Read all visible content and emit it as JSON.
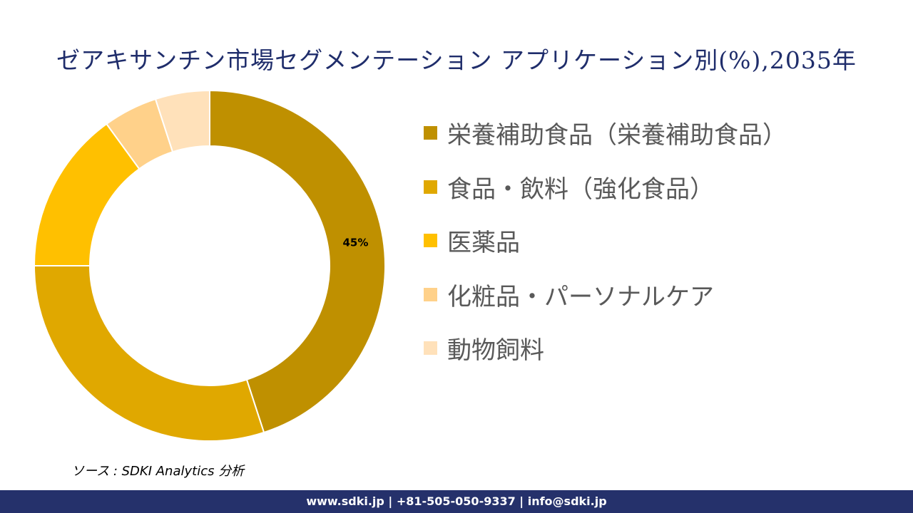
{
  "title": "ゼアキサンチン市場セグメンテーション アプリケーション別(%),2035年",
  "chart_data": {
    "type": "pie",
    "donut": true,
    "title": "ゼアキサンチン市場セグメンテーション アプリケーション別(%),2035年",
    "categories": [
      "栄養補助食品（栄養補助食品）",
      "食品・飲料（強化食品）",
      "医薬品",
      "化粧品・パーソナルケア",
      "動物飼料"
    ],
    "values": [
      45,
      30,
      15,
      5,
      5
    ],
    "colors": [
      "#BF9000",
      "#E0A800",
      "#FFC000",
      "#FFD18A",
      "#FFE1BA"
    ],
    "data_labels": [
      "45%",
      "",
      "",
      "",
      ""
    ],
    "legend_position": "right"
  },
  "source": "ソース : SDKI Analytics 分析",
  "footer": "www.sdki.jp | +81-505-050-9337 | info@sdki.jp"
}
